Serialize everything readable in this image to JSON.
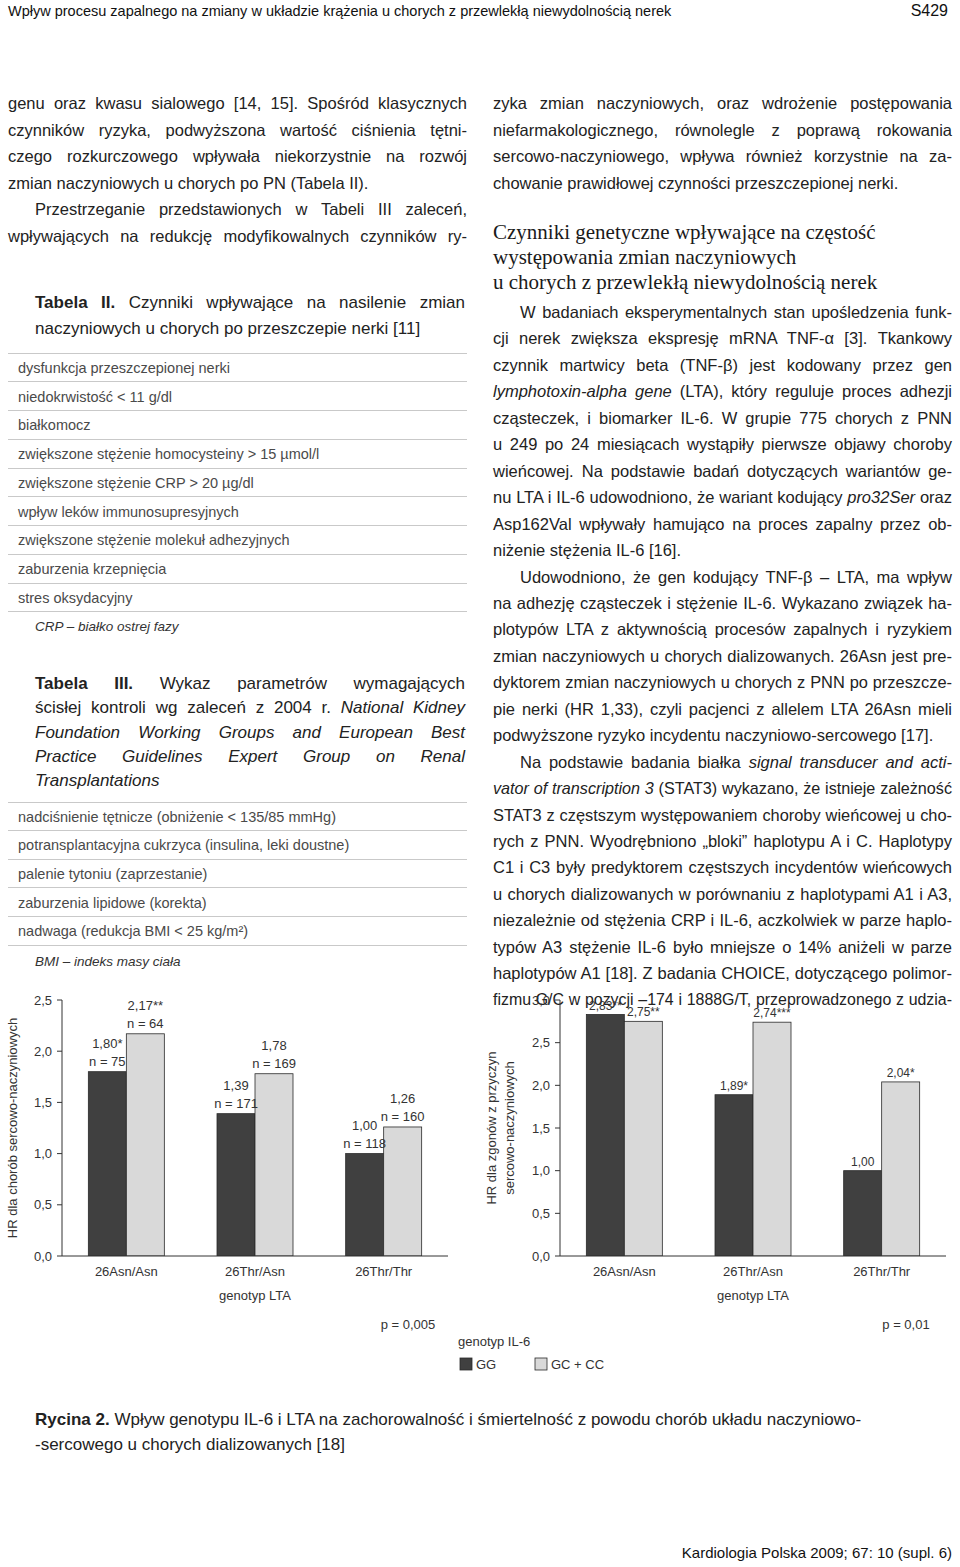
{
  "header": {
    "title": "Wpływ procesu zapalnego na zmiany w układzie krążenia u chorych z przewlekłą niewydolnością nerek",
    "page": "S429"
  },
  "left_column": {
    "paragraphs": [
      {
        "lines": [
          "genu oraz kwasu sialowego [14, 15]. Spośród klasycznych",
          "czynników ryzyka, podwyższona wartość ciśnienia tętni-",
          "czego rozkurczowego wpływała niekorzystnie na rozwój",
          "zmian naczyniowych u chorych po PN (Tabela II)."
        ]
      },
      {
        "lines": [
          "Przestrzeganie przedstawionych w Tabeli III zaleceń,",
          "wpływających na redukcję modyfikowalnych czynników ry-"
        ]
      }
    ]
  },
  "table_2": {
    "label": "Tabela II.",
    "title_lines": [
      "Czynniki wpływające na nasilenie zmian",
      "naczyniowych u chorych po przeszczepie nerki [11]"
    ],
    "rows": [
      "dysfunkcja przeszczepionej nerki",
      "niedokrwistość < 11 g/dl",
      "białkomocz",
      "zwiększone stężenie homocysteiny > 15 µmol/l",
      "zwiększone stężenie CRP > 20 µg/dl",
      "wpływ leków immunosupresyjnych",
      "zwiększone stężenie molekuł adhezyjnych",
      "zaburzenia krzepnięcia",
      "stres oksydacyjny"
    ],
    "note": "CRP – białko ostrej fazy"
  },
  "table_3": {
    "label": "Tabela III.",
    "title_lines": [
      "Wykaz parametrów wymagających",
      {
        "parts": [
          {
            "text": "ścisłej kontroli wg zaleceń z 2004 r. "
          },
          {
            "text": "National Kidney",
            "italic": true
          }
        ]
      },
      {
        "parts": [
          {
            "text": "Foundation Working Groups and European Best",
            "italic": true
          }
        ]
      },
      {
        "parts": [
          {
            "text": "Practice Guidelines Expert Group on Renal",
            "italic": true
          }
        ]
      },
      {
        "parts": [
          {
            "text": "Transplantations",
            "italic": true
          }
        ]
      }
    ],
    "rows": [
      "nadciśnienie tętnicze (obniżenie < 135/85 mmHg)",
      "potransplantacyjna cukrzyca (insulina, leki doustne)",
      "palenie tytoniu (zaprzestanie)",
      "zaburzenia lipidowe (korekta)",
      "nadwaga (redukcja BMI < 25 kg/m²)"
    ],
    "note": "BMI – indeks masy ciała"
  },
  "right_column": {
    "continued_lines": [
      "zyka zmian naczyniowych, oraz wdrożenie postępowania",
      "niefarmakologicznego, równolegle z poprawą rokowania",
      "sercowo-naczyniowego, wpływa również korzystnie na za-",
      "chowanie prawidłowej czynności przeszczepionej nerki."
    ],
    "heading_lines": [
      "Czynniki genetyczne wpływające na częstość",
      "występowania zmian naczyniowych",
      "u chorych z przewlekłą niewydolnością nerek"
    ],
    "paragraphs": [
      {
        "lines": [
          "W badaniach eksperymentalnych stan upośledzenia funk-",
          "cji nerek zwiększa ekspresję mRNA TNF-α [3]. Tkankowy",
          "czynnik martwicy beta (TNF-β) jest kodowany przez gen",
          {
            "parts": [
              {
                "text": "lymphotoxin-alpha gene",
                "italic": true
              },
              {
                "text": " (LTA), który reguluje proces adhezji"
              }
            ]
          },
          "cząsteczek, i biomarker IL-6. W grupie 775 chorych z PNN",
          "u 249 po 24 miesiącach wystąpiły pierwsze objawy choroby",
          "wieńcowej. Na podstawie badań dotyczących wariantów ge-",
          {
            "parts": [
              {
                "text": "nu LTA i IL-6 udowodniono, że wariant kodujący "
              },
              {
                "text": "pro32Ser",
                "italic": true
              },
              {
                "text": " oraz"
              }
            ]
          },
          "Asp162Val wpływały hamująco na proces zapalny przez ob-",
          "niżenie stężenia IL-6 [16]."
        ]
      },
      {
        "lines": [
          "Udowodniono, że gen kodujący TNF-β – LTA, ma wpływ",
          "na adhezję cząsteczek i stężenie IL-6. Wykazano związek ha-",
          "plotypów LTA z aktywnością procesów zapalnych i ryzykiem",
          "zmian naczyniowych u chorych dializowanych. 26Asn jest pre-",
          "dyktorem zmian naczyniowych u chorych z PNN po przeszcze-",
          "pie nerki (HR 1,33), czyli pacjenci z allelem LTA 26Asn mieli",
          "podwyższone ryzyko incydentu naczyniowo-sercowego [17]."
        ]
      },
      {
        "lines": [
          {
            "parts": [
              {
                "text": "Na podstawie badania białka "
              },
              {
                "text": "signal transducer and acti-",
                "italic": true
              }
            ]
          },
          {
            "parts": [
              {
                "text": "vator of transcription 3",
                "italic": true
              },
              {
                "text": " (STAT3) wykazano, że istnieje zależność"
              }
            ]
          },
          "STAT3 z częstszym występowaniem choroby wieńcowej u cho-",
          "rych z PNN. Wyodrębniono „bloki” haplotypu A i C. Haplotypy",
          "C1 i C3 były predyktorem częstszych incydentów wieńcowych",
          "u chorych dializowanych w porównaniu z haplotypami A1 i A3,",
          "niezależnie od stężenia CRP i IL-6, aczkolwiek w parze haplo-",
          "typów A3 stężenie IL-6 było mniejsze o 14% aniżeli w parze",
          "haplotypów A1 [18]. Z badania CHOICE, dotyczącego polimor-",
          "fizmu G/C w pozycji –174 i 1888G/T, przeprowadzonego z udzia-"
        ]
      }
    ]
  },
  "chart_data": [
    {
      "type": "bar",
      "ylabel": "HR dla chorób sercowo-naczyniowych",
      "xlabel": "genotyp LTA",
      "categories": [
        "26Asn/Asn",
        "26Thr/Asn",
        "26Thr/Thr"
      ],
      "series": [
        {
          "name": "GG",
          "color": "#404040",
          "values": [
            1.8,
            1.39,
            1.0
          ],
          "value_labels": [
            "1,80*",
            "1,39",
            "1,00"
          ],
          "sample_labels": [
            "n = 75",
            "n = 171",
            "n = 118"
          ]
        },
        {
          "name": "GC + CC",
          "color": "#d9d9d9",
          "values": [
            2.17,
            1.78,
            1.26
          ],
          "value_labels": [
            "2,17**",
            "1,78",
            "1,26"
          ],
          "sample_labels": [
            "n = 64",
            "n = 169",
            "n = 160"
          ]
        }
      ],
      "ylim": [
        0,
        2.5
      ],
      "yticks": [
        {
          "value": 0,
          "label": "0,0"
        },
        {
          "value": 0.5,
          "label": "0,5"
        },
        {
          "value": 1,
          "label": "1,0"
        },
        {
          "value": 1.5,
          "label": "1,5"
        },
        {
          "value": 2,
          "label": "2,0"
        },
        {
          "value": 2.5,
          "label": "2,5"
        }
      ],
      "data_labels": true,
      "legend": "bottom-right",
      "legend_title": "genotyp IL-6",
      "annotation": "p = 0,005"
    },
    {
      "type": "bar",
      "ylabel": [
        "HR dla zgonów z przyczyn",
        "sercowo-naczyniowych"
      ],
      "xlabel": "genotyp LTA",
      "categories": [
        "26Asn/Asn",
        "26Thr/Asn",
        "26Thr/Thr"
      ],
      "series": [
        {
          "color": "#404040",
          "values": [
            2.83,
            1.89,
            1.0
          ],
          "value_labels": [
            "2,83**",
            "1,89*",
            "1,00"
          ]
        },
        {
          "color": "#d9d9d9",
          "values": [
            2.75,
            2.74,
            2.04
          ],
          "value_labels": [
            "2,75**",
            "2,74***",
            "2,04*"
          ]
        }
      ],
      "ylim": [
        0,
        3
      ],
      "yticks": [
        {
          "value": 0,
          "label": "0,0"
        },
        {
          "value": 0.5,
          "label": "0,5"
        },
        {
          "value": 1,
          "label": "1,0"
        },
        {
          "value": 1.5,
          "label": "1,5"
        },
        {
          "value": 2,
          "label": "2,0"
        },
        {
          "value": 2.5,
          "label": "2,5"
        },
        {
          "value": 3,
          "label": "3,0"
        }
      ],
      "data_labels": true,
      "annotation": "p = 0,01"
    }
  ],
  "figure": {
    "caption_label": "Rycina 2.",
    "caption_lines": [
      "Wpływ genotypu IL-6 i LTA na zachorowalność i śmiertelność z powodu chorób układu naczyniowo-",
      "-sercowego u chorych dializowanych [18]"
    ]
  },
  "footer": {
    "citation": "Kardiologia Polska 2009; 67: 10 (supl. 6)"
  }
}
